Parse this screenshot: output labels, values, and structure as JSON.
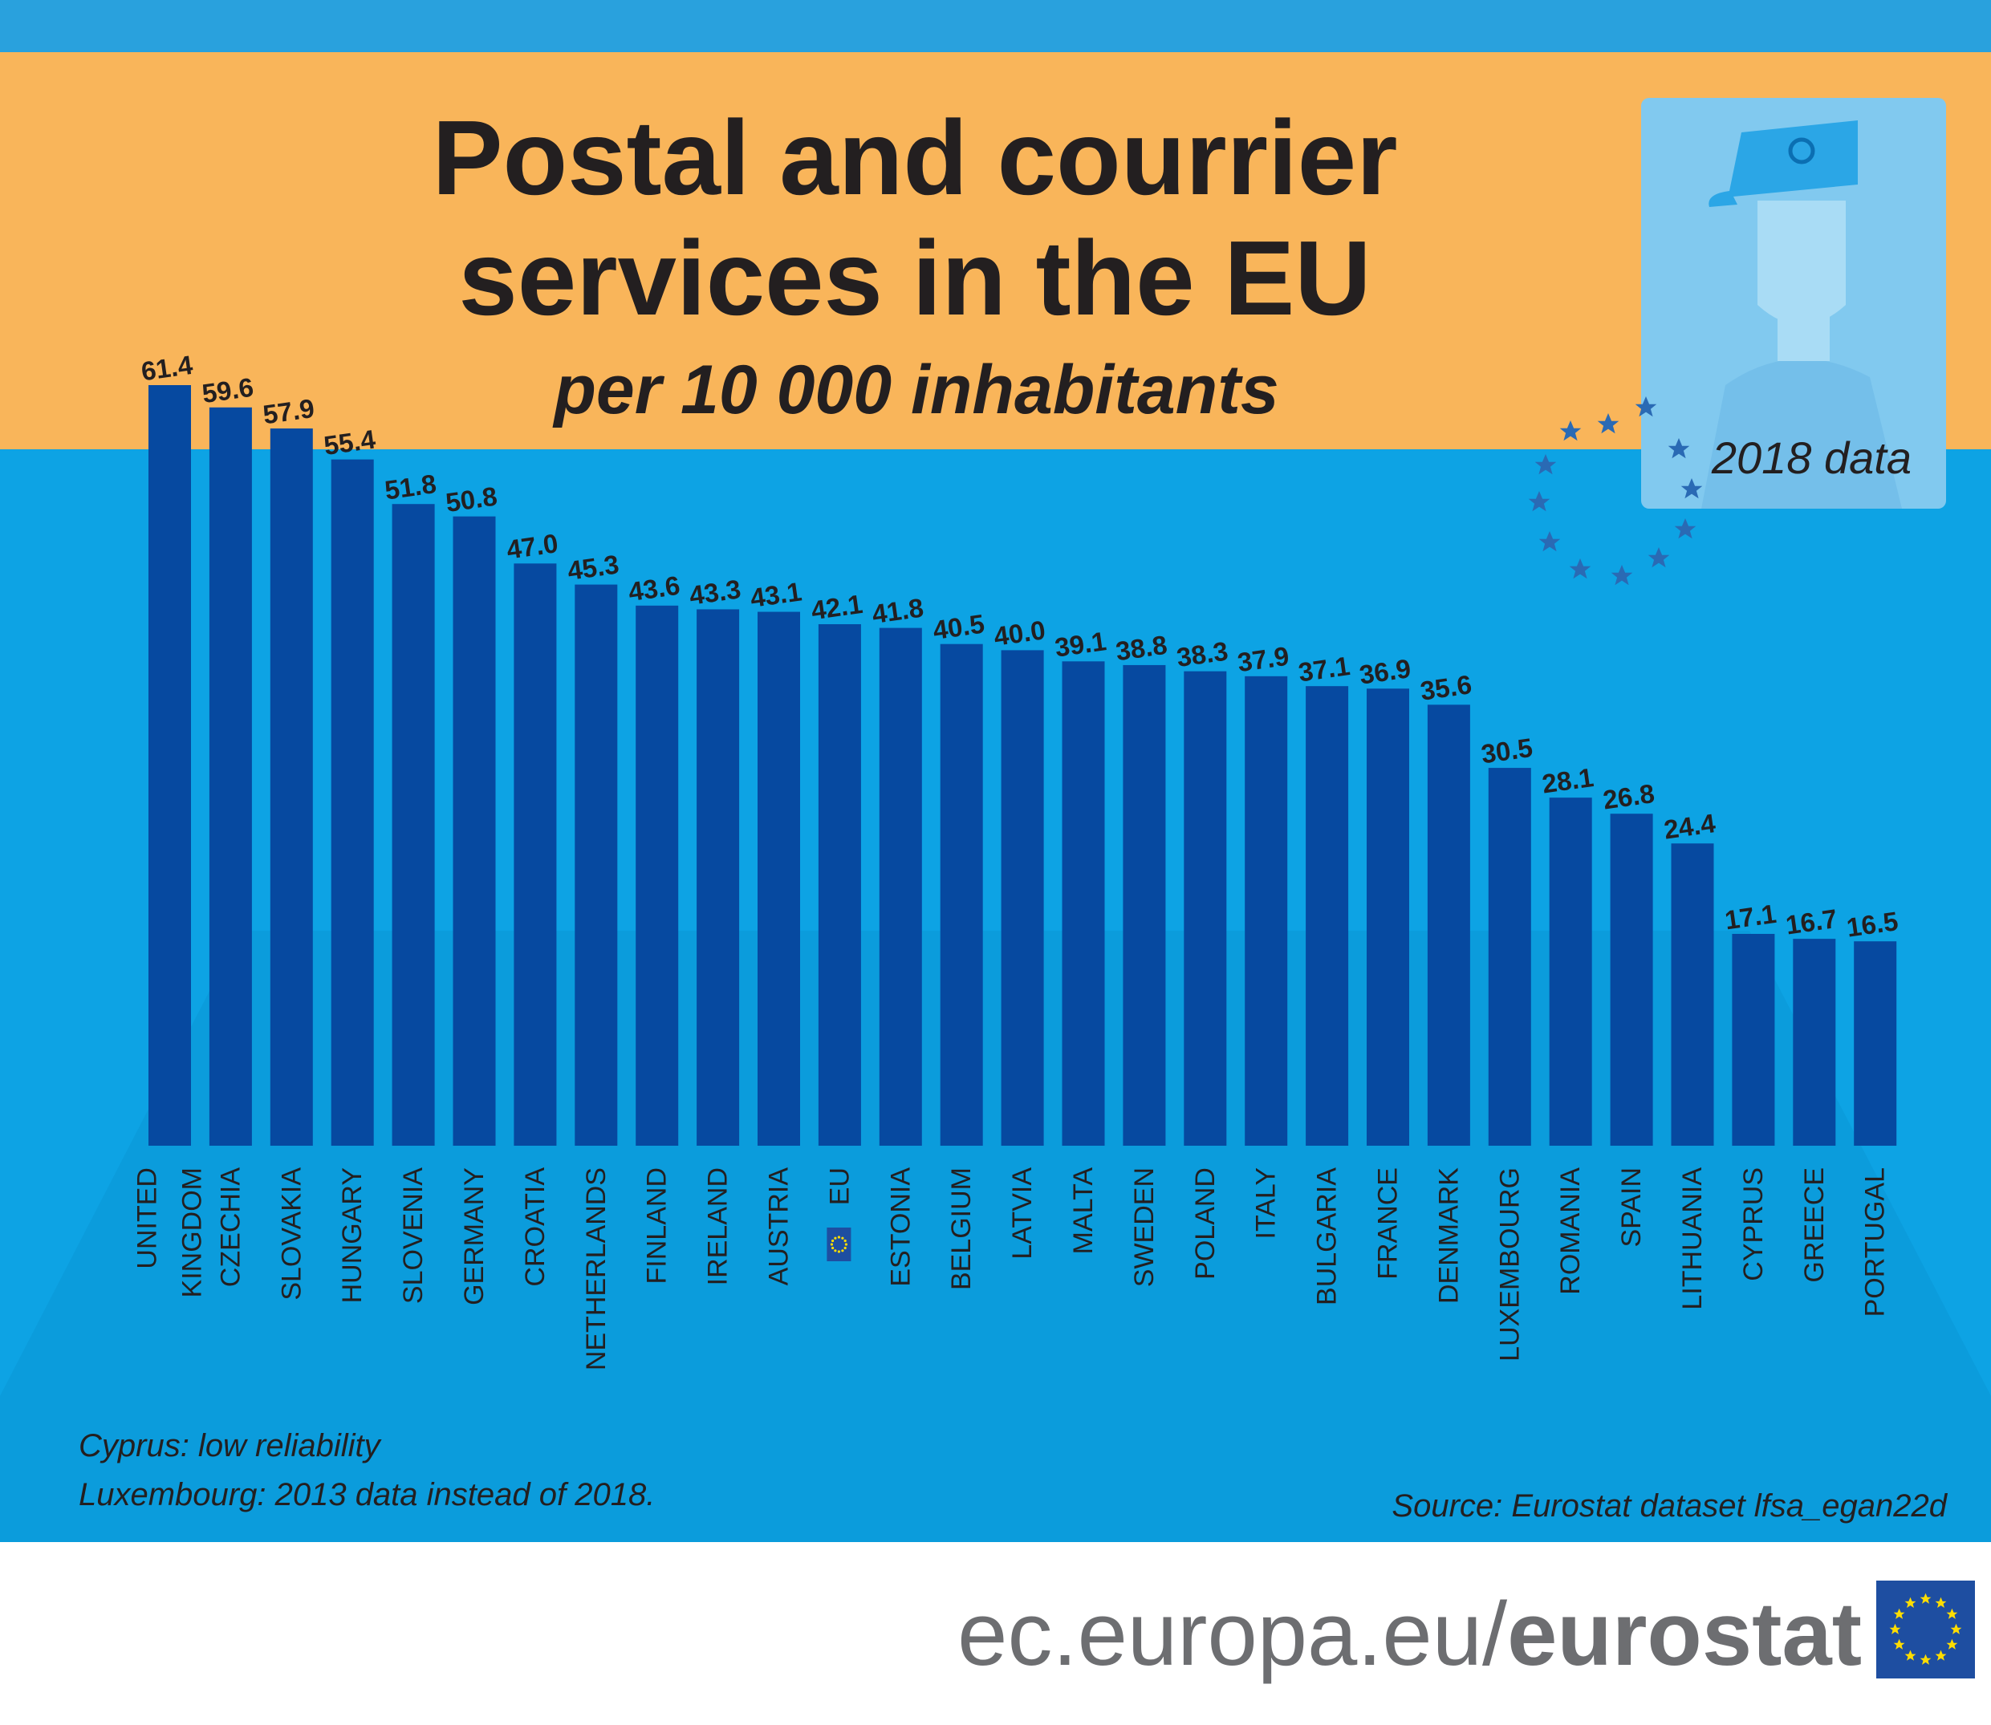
{
  "title_line1": "Postal and courrier",
  "title_line2": "services in the EU",
  "subtitle": "per 10 000 inhabitants",
  "stamp_label": "2018 data",
  "notes": [
    "Cyprus: low reliability",
    "Luxembourg: 2013 data instead of 2018."
  ],
  "source": "Source: Eurostat dataset lfsa_egan22d",
  "footer": {
    "prefix": "ec.europa.eu/",
    "brand": "eurostat"
  },
  "colors": {
    "top_band": "#29a1dd",
    "title_band": "#f9b55a",
    "chart_bg": "#0da3e4",
    "bar": "#0649a0",
    "stamp": "#81c9ef",
    "stars": "#2a6ab4",
    "footer_text": "#6d6e71",
    "eu_flag": "#1e4ea1"
  },
  "chart_data": {
    "type": "bar",
    "title": "Postal and courrier services in the EU",
    "subtitle": "per 10 000 inhabitants",
    "xlabel": "",
    "ylabel": "",
    "ylim": [
      0,
      61.4
    ],
    "categories": [
      [
        "UNITED",
        "KINGDOM"
      ],
      [
        "CZECHIA"
      ],
      [
        "SLOVAKIA"
      ],
      [
        "HUNGARY"
      ],
      [
        "SLOVENIA"
      ],
      [
        "GERMANY"
      ],
      [
        "CROATIA"
      ],
      [
        "NETHERLANDS"
      ],
      [
        "FINLAND"
      ],
      [
        "IRELAND"
      ],
      [
        "AUSTRIA"
      ],
      [
        "EU"
      ],
      [
        "ESTONIA"
      ],
      [
        "BELGIUM"
      ],
      [
        "LATVIA"
      ],
      [
        "MALTA"
      ],
      [
        "SWEDEN"
      ],
      [
        "POLAND"
      ],
      [
        "ITALY"
      ],
      [
        "BULGARIA"
      ],
      [
        "FRANCE"
      ],
      [
        "DENMARK"
      ],
      [
        "LUXEMBOURG"
      ],
      [
        "ROMANIA"
      ],
      [
        "SPAIN"
      ],
      [
        "LITHUANIA"
      ],
      [
        "CYPRUS"
      ],
      [
        "GREECE"
      ],
      [
        "PORTUGAL"
      ]
    ],
    "values": [
      61.4,
      59.6,
      57.9,
      55.4,
      51.8,
      50.8,
      47.0,
      45.3,
      43.6,
      43.3,
      43.1,
      42.1,
      41.8,
      40.5,
      40.0,
      39.1,
      38.8,
      38.3,
      37.9,
      37.1,
      36.9,
      35.6,
      30.5,
      28.1,
      26.8,
      24.4,
      17.1,
      16.7,
      16.5
    ],
    "value_labels": [
      "61.4",
      "59.6",
      "57.9",
      "55.4",
      "51.8",
      "50.8",
      "47.0",
      "45.3",
      "43.6",
      "43.3",
      "43.1",
      "42.1",
      "41.8",
      "40.5",
      "40.0",
      "39.1",
      "38.8",
      "38.3",
      "37.9",
      "37.1",
      "36.9",
      "35.6",
      "30.5",
      "28.1",
      "26.8",
      "24.4",
      "17.1",
      "16.7",
      "16.5"
    ],
    "highlight": "EU",
    "grid": false,
    "legend": "none"
  }
}
